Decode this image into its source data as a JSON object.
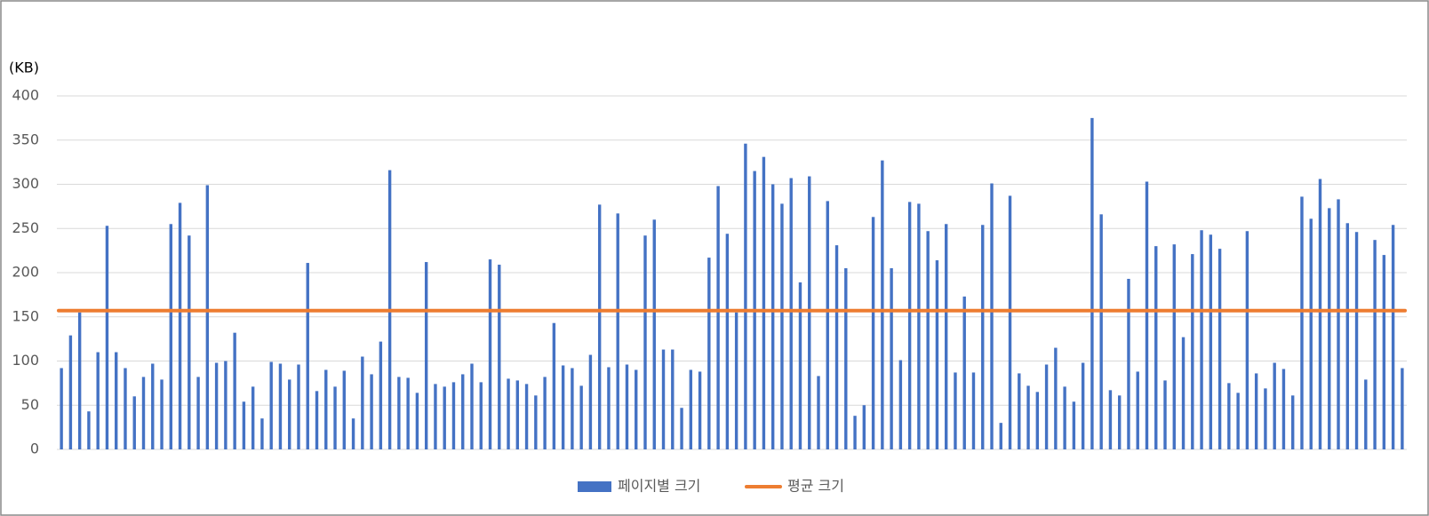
{
  "chart_data": {
    "type": "bar",
    "y_axis_label": "(KB)",
    "ylim": [
      0,
      400
    ],
    "yticks": [
      0,
      50,
      100,
      150,
      200,
      250,
      300,
      350,
      400
    ],
    "grid": true,
    "legend": "bottom",
    "series": [
      {
        "name": "페이지별 크기",
        "color": "#4472c4",
        "values": [
          92,
          129,
          155,
          43,
          110,
          253,
          110,
          92,
          60,
          82,
          97,
          79,
          255,
          279,
          242,
          82,
          299,
          98,
          100,
          132,
          54,
          71,
          35,
          99,
          97,
          79,
          96,
          211,
          66,
          90,
          71,
          89,
          35,
          105,
          85,
          122,
          316,
          82,
          81,
          64,
          212,
          74,
          71,
          76,
          85,
          97,
          76,
          215,
          209,
          80,
          78,
          74,
          61,
          82,
          143,
          95,
          92,
          72,
          107,
          277,
          93,
          267,
          96,
          90,
          242,
          260,
          113,
          113,
          47,
          90,
          88,
          217,
          298,
          244,
          155,
          346,
          315,
          331,
          300,
          278,
          307,
          189,
          309,
          83,
          281,
          231,
          205,
          38,
          50,
          263,
          327,
          205,
          101,
          280,
          278,
          247,
          214,
          255,
          87,
          173,
          87,
          254,
          301,
          30,
          287,
          86,
          72,
          65,
          96,
          115,
          71,
          54,
          98,
          375,
          266,
          67,
          61,
          193,
          88,
          303,
          230,
          78,
          232,
          127,
          221,
          248,
          243,
          227,
          75,
          64,
          247,
          86,
          69,
          98,
          91,
          61,
          286,
          261,
          306,
          273,
          283,
          256,
          246,
          79,
          237,
          220,
          254,
          92
        ]
      }
    ],
    "average": {
      "name": "평균 크기",
      "color": "#ed7d31",
      "value": 157
    }
  }
}
